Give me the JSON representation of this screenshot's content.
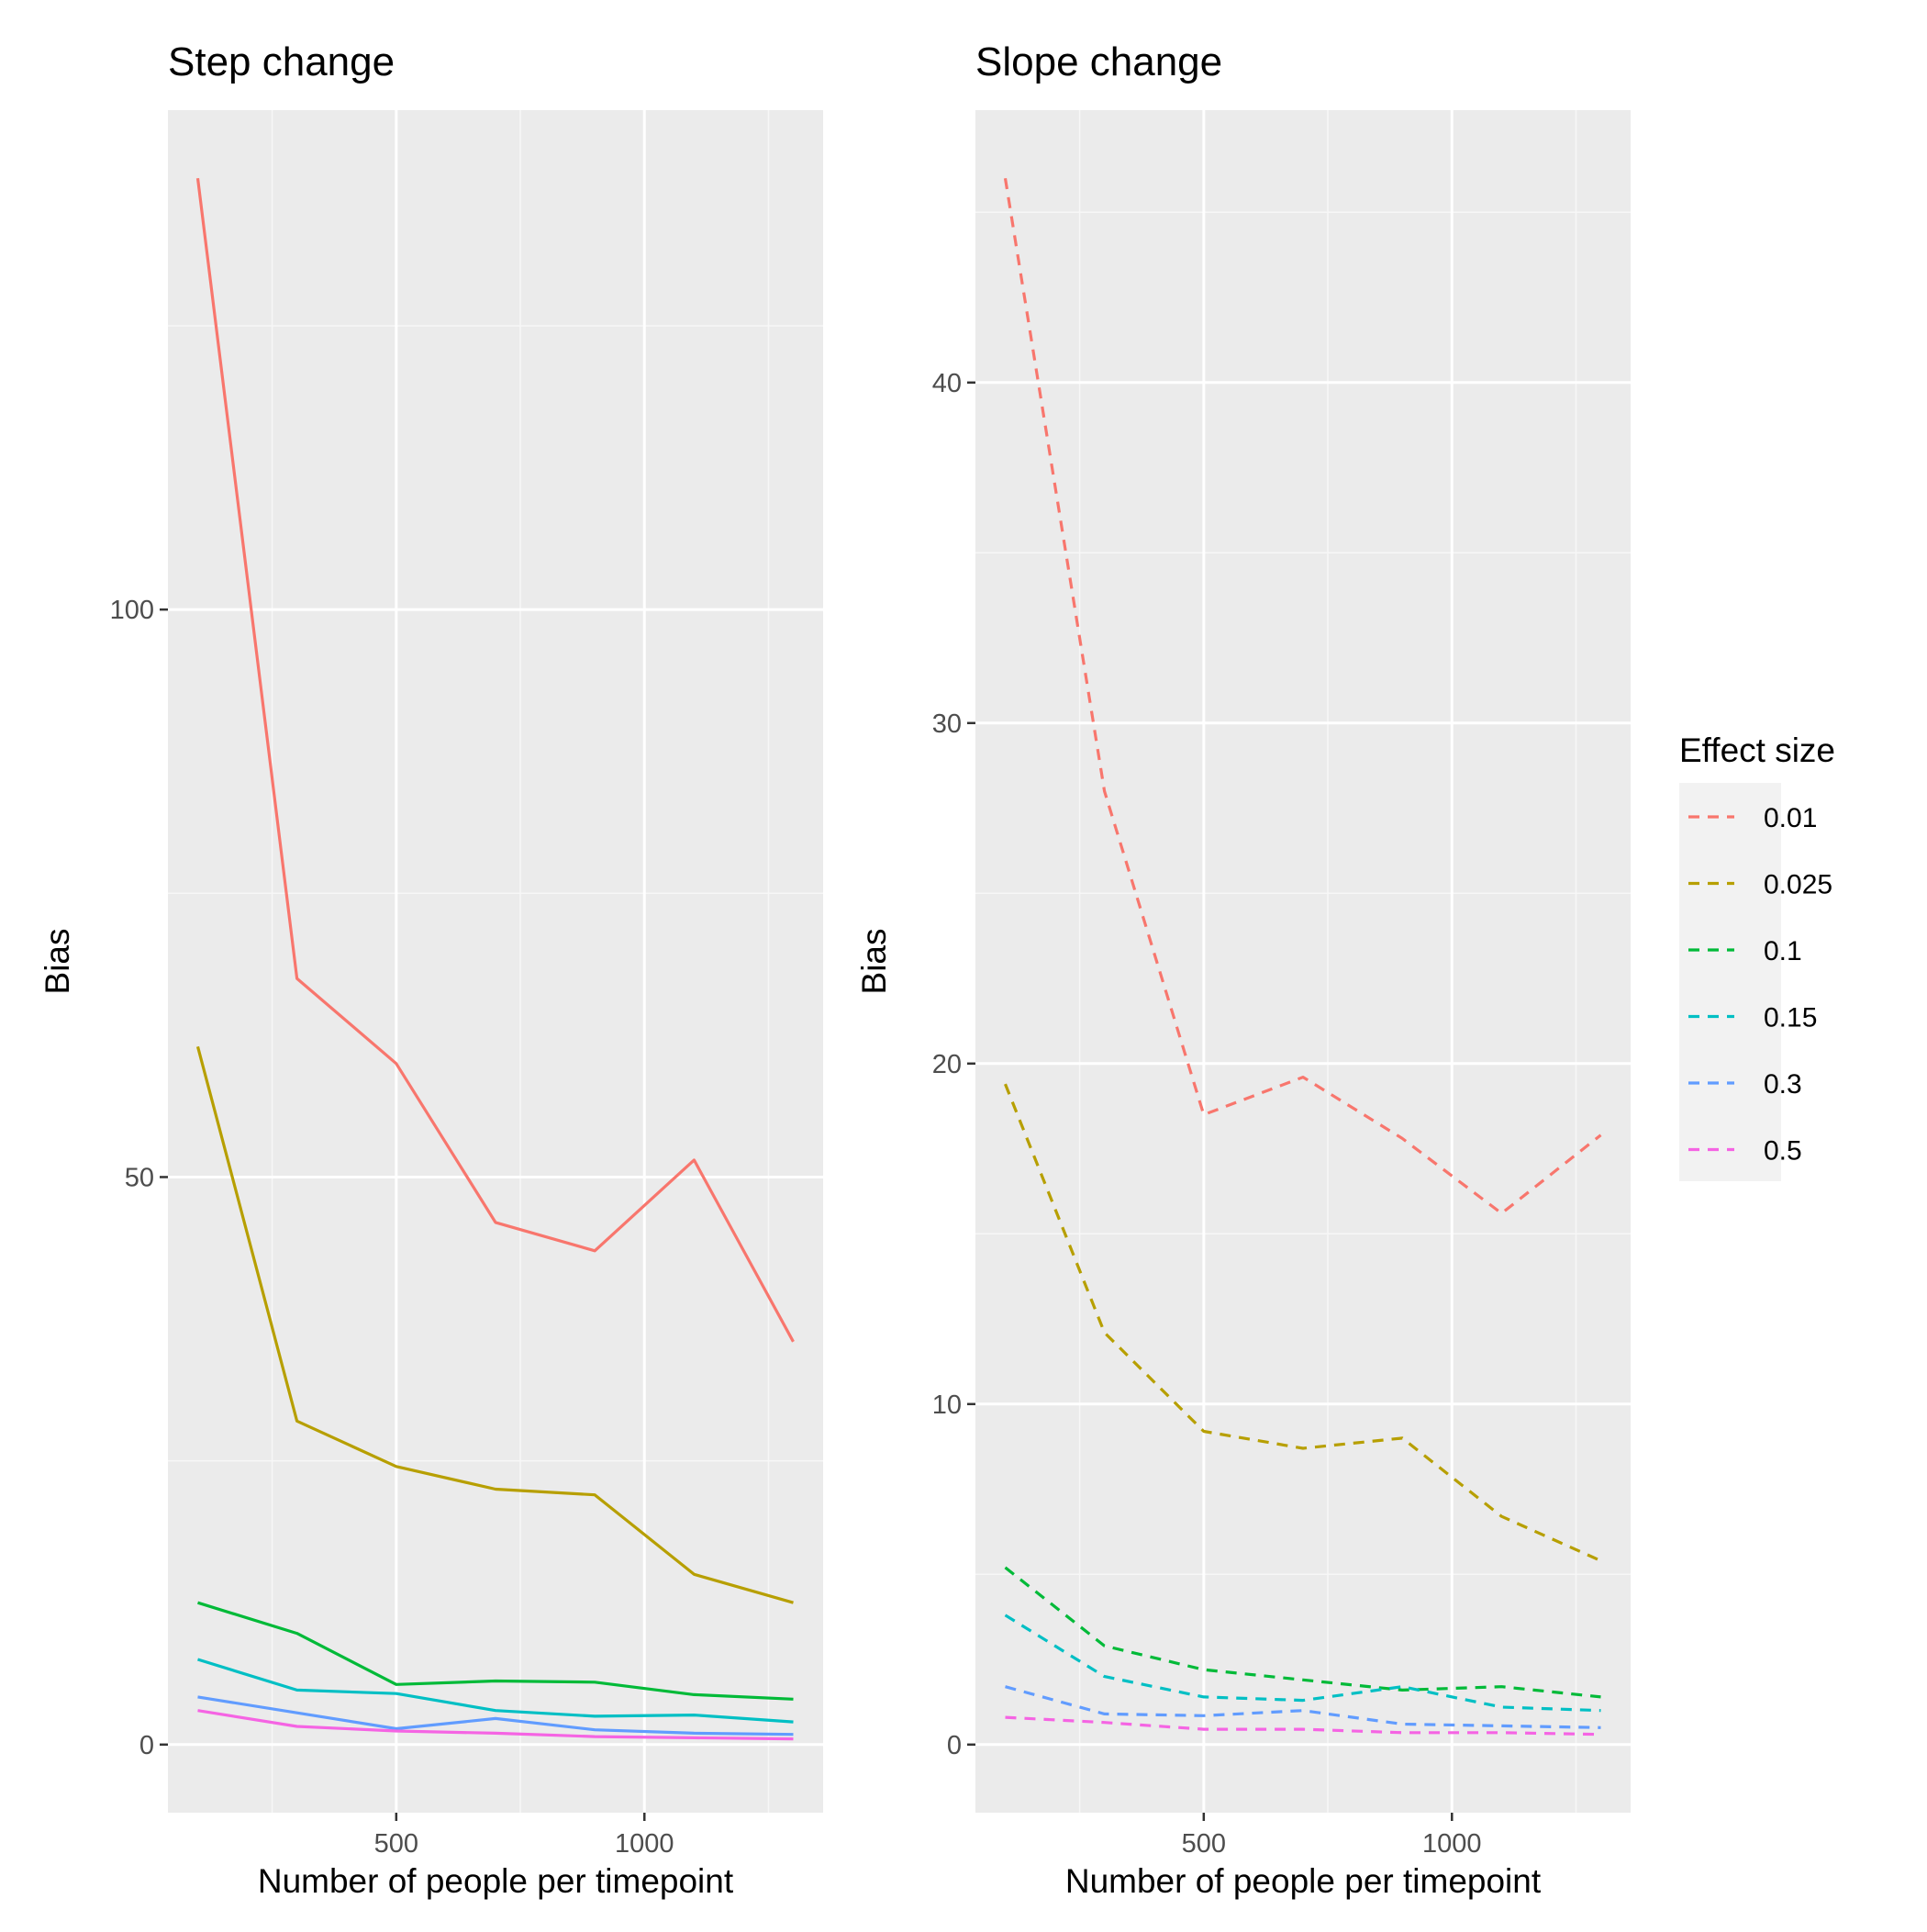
{
  "chart_data": [
    {
      "type": "line",
      "title": "Step change",
      "xlabel": "Number of people per timepoint",
      "ylabel": "Bias",
      "xlim": [
        40,
        1360
      ],
      "ylim": [
        -6,
        144
      ],
      "x_ticks": [
        500,
        1000
      ],
      "x_tick_labels": [
        "500",
        "1000"
      ],
      "y_ticks": [
        0,
        50,
        100
      ],
      "y_tick_labels": [
        "0",
        "50",
        "100"
      ],
      "grid": true,
      "line_style": "solid",
      "x": [
        100,
        300,
        500,
        700,
        900,
        1100,
        1300
      ],
      "series": [
        {
          "name": "0.01",
          "color": "#F8766D",
          "values": [
            138,
            67.5,
            60,
            46,
            43.5,
            51.5,
            35.5
          ]
        },
        {
          "name": "0.025",
          "color": "#B79F00",
          "values": [
            61.5,
            28.5,
            24.5,
            22.5,
            22,
            15,
            12.5
          ]
        },
        {
          "name": "0.1",
          "color": "#00BA38",
          "values": [
            12.5,
            9.8,
            5.3,
            5.6,
            5.5,
            4.4,
            4
          ]
        },
        {
          "name": "0.15",
          "color": "#00BFC4",
          "values": [
            7.5,
            4.8,
            4.5,
            3,
            2.5,
            2.6,
            2
          ]
        },
        {
          "name": "0.3",
          "color": "#619CFF",
          "values": [
            4.2,
            2.8,
            1.4,
            2.3,
            1.3,
            1,
            0.9
          ]
        },
        {
          "name": "0.5",
          "color": "#F564E3",
          "values": [
            3,
            1.6,
            1.2,
            1,
            0.7,
            0.6,
            0.5
          ]
        }
      ]
    },
    {
      "type": "line",
      "title": "Slope change",
      "xlabel": "Number of people per timepoint",
      "ylabel": "Bias",
      "xlim": [
        40,
        1360
      ],
      "ylim": [
        -2,
        48
      ],
      "x_ticks": [
        500,
        1000
      ],
      "x_tick_labels": [
        "500",
        "1000"
      ],
      "y_ticks": [
        0,
        10,
        20,
        30,
        40
      ],
      "y_tick_labels": [
        "0",
        "10",
        "20",
        "30",
        "40"
      ],
      "grid": true,
      "line_style": "dashed",
      "x": [
        100,
        300,
        500,
        700,
        900,
        1100,
        1300
      ],
      "series": [
        {
          "name": "0.01",
          "color": "#F8766D",
          "values": [
            46,
            28,
            18.5,
            19.6,
            17.8,
            15.6,
            17.9
          ]
        },
        {
          "name": "0.025",
          "color": "#B79F00",
          "values": [
            19.4,
            12.1,
            9.2,
            8.7,
            9,
            6.7,
            5.4
          ]
        },
        {
          "name": "0.1",
          "color": "#00BA38",
          "values": [
            5.2,
            2.9,
            2.2,
            1.9,
            1.6,
            1.7,
            1.4
          ]
        },
        {
          "name": "0.15",
          "color": "#00BFC4",
          "values": [
            3.8,
            2,
            1.4,
            1.3,
            1.7,
            1.1,
            1
          ]
        },
        {
          "name": "0.3",
          "color": "#619CFF",
          "values": [
            1.7,
            0.9,
            0.85,
            1,
            0.6,
            0.55,
            0.5
          ]
        },
        {
          "name": "0.5",
          "color": "#F564E3",
          "values": [
            0.8,
            0.65,
            0.45,
            0.45,
            0.35,
            0.35,
            0.3
          ]
        }
      ]
    }
  ],
  "legend": {
    "title": "Effect size",
    "position": "right",
    "items": [
      "0.01",
      "0.025",
      "0.1",
      "0.15",
      "0.3",
      "0.5"
    ],
    "colors": [
      "#F8766D",
      "#B79F00",
      "#00BA38",
      "#00BFC4",
      "#619CFF",
      "#F564E3"
    ]
  },
  "colors": {
    "panel_background": "#EBEBEB",
    "grid_major": "#FFFFFF",
    "grid_minor": "#F7F7F7",
    "text": "#000000",
    "tick_text": "#4D4D4D",
    "tick_mark": "#333333"
  }
}
